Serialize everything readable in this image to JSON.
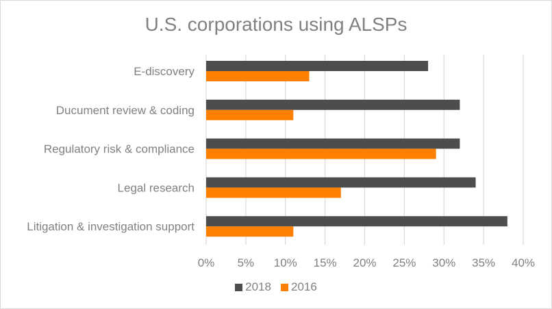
{
  "chart_data": {
    "type": "bar",
    "orientation": "horizontal",
    "title": "U.S. corporations using ALSPs",
    "xlabel": "",
    "ylabel": "",
    "categories": [
      "E-discovery",
      "Ducument review & coding",
      "Regulatory risk & compliance",
      "Legal research",
      "Litigation & investigation support"
    ],
    "series": [
      {
        "name": "2018",
        "color": "#4d4d4d",
        "values": [
          28,
          32,
          32,
          34,
          38
        ]
      },
      {
        "name": "2016",
        "color": "#ff8000",
        "values": [
          13,
          11,
          29,
          17,
          11
        ]
      }
    ],
    "xlim": [
      0,
      40
    ],
    "xticks": [
      0,
      5,
      10,
      15,
      20,
      25,
      30,
      35,
      40
    ],
    "xtick_labels": [
      "0%",
      "5%",
      "10%",
      "15%",
      "20%",
      "25%",
      "30%",
      "35%",
      "40%"
    ],
    "grid": true,
    "legend": "bottom"
  }
}
